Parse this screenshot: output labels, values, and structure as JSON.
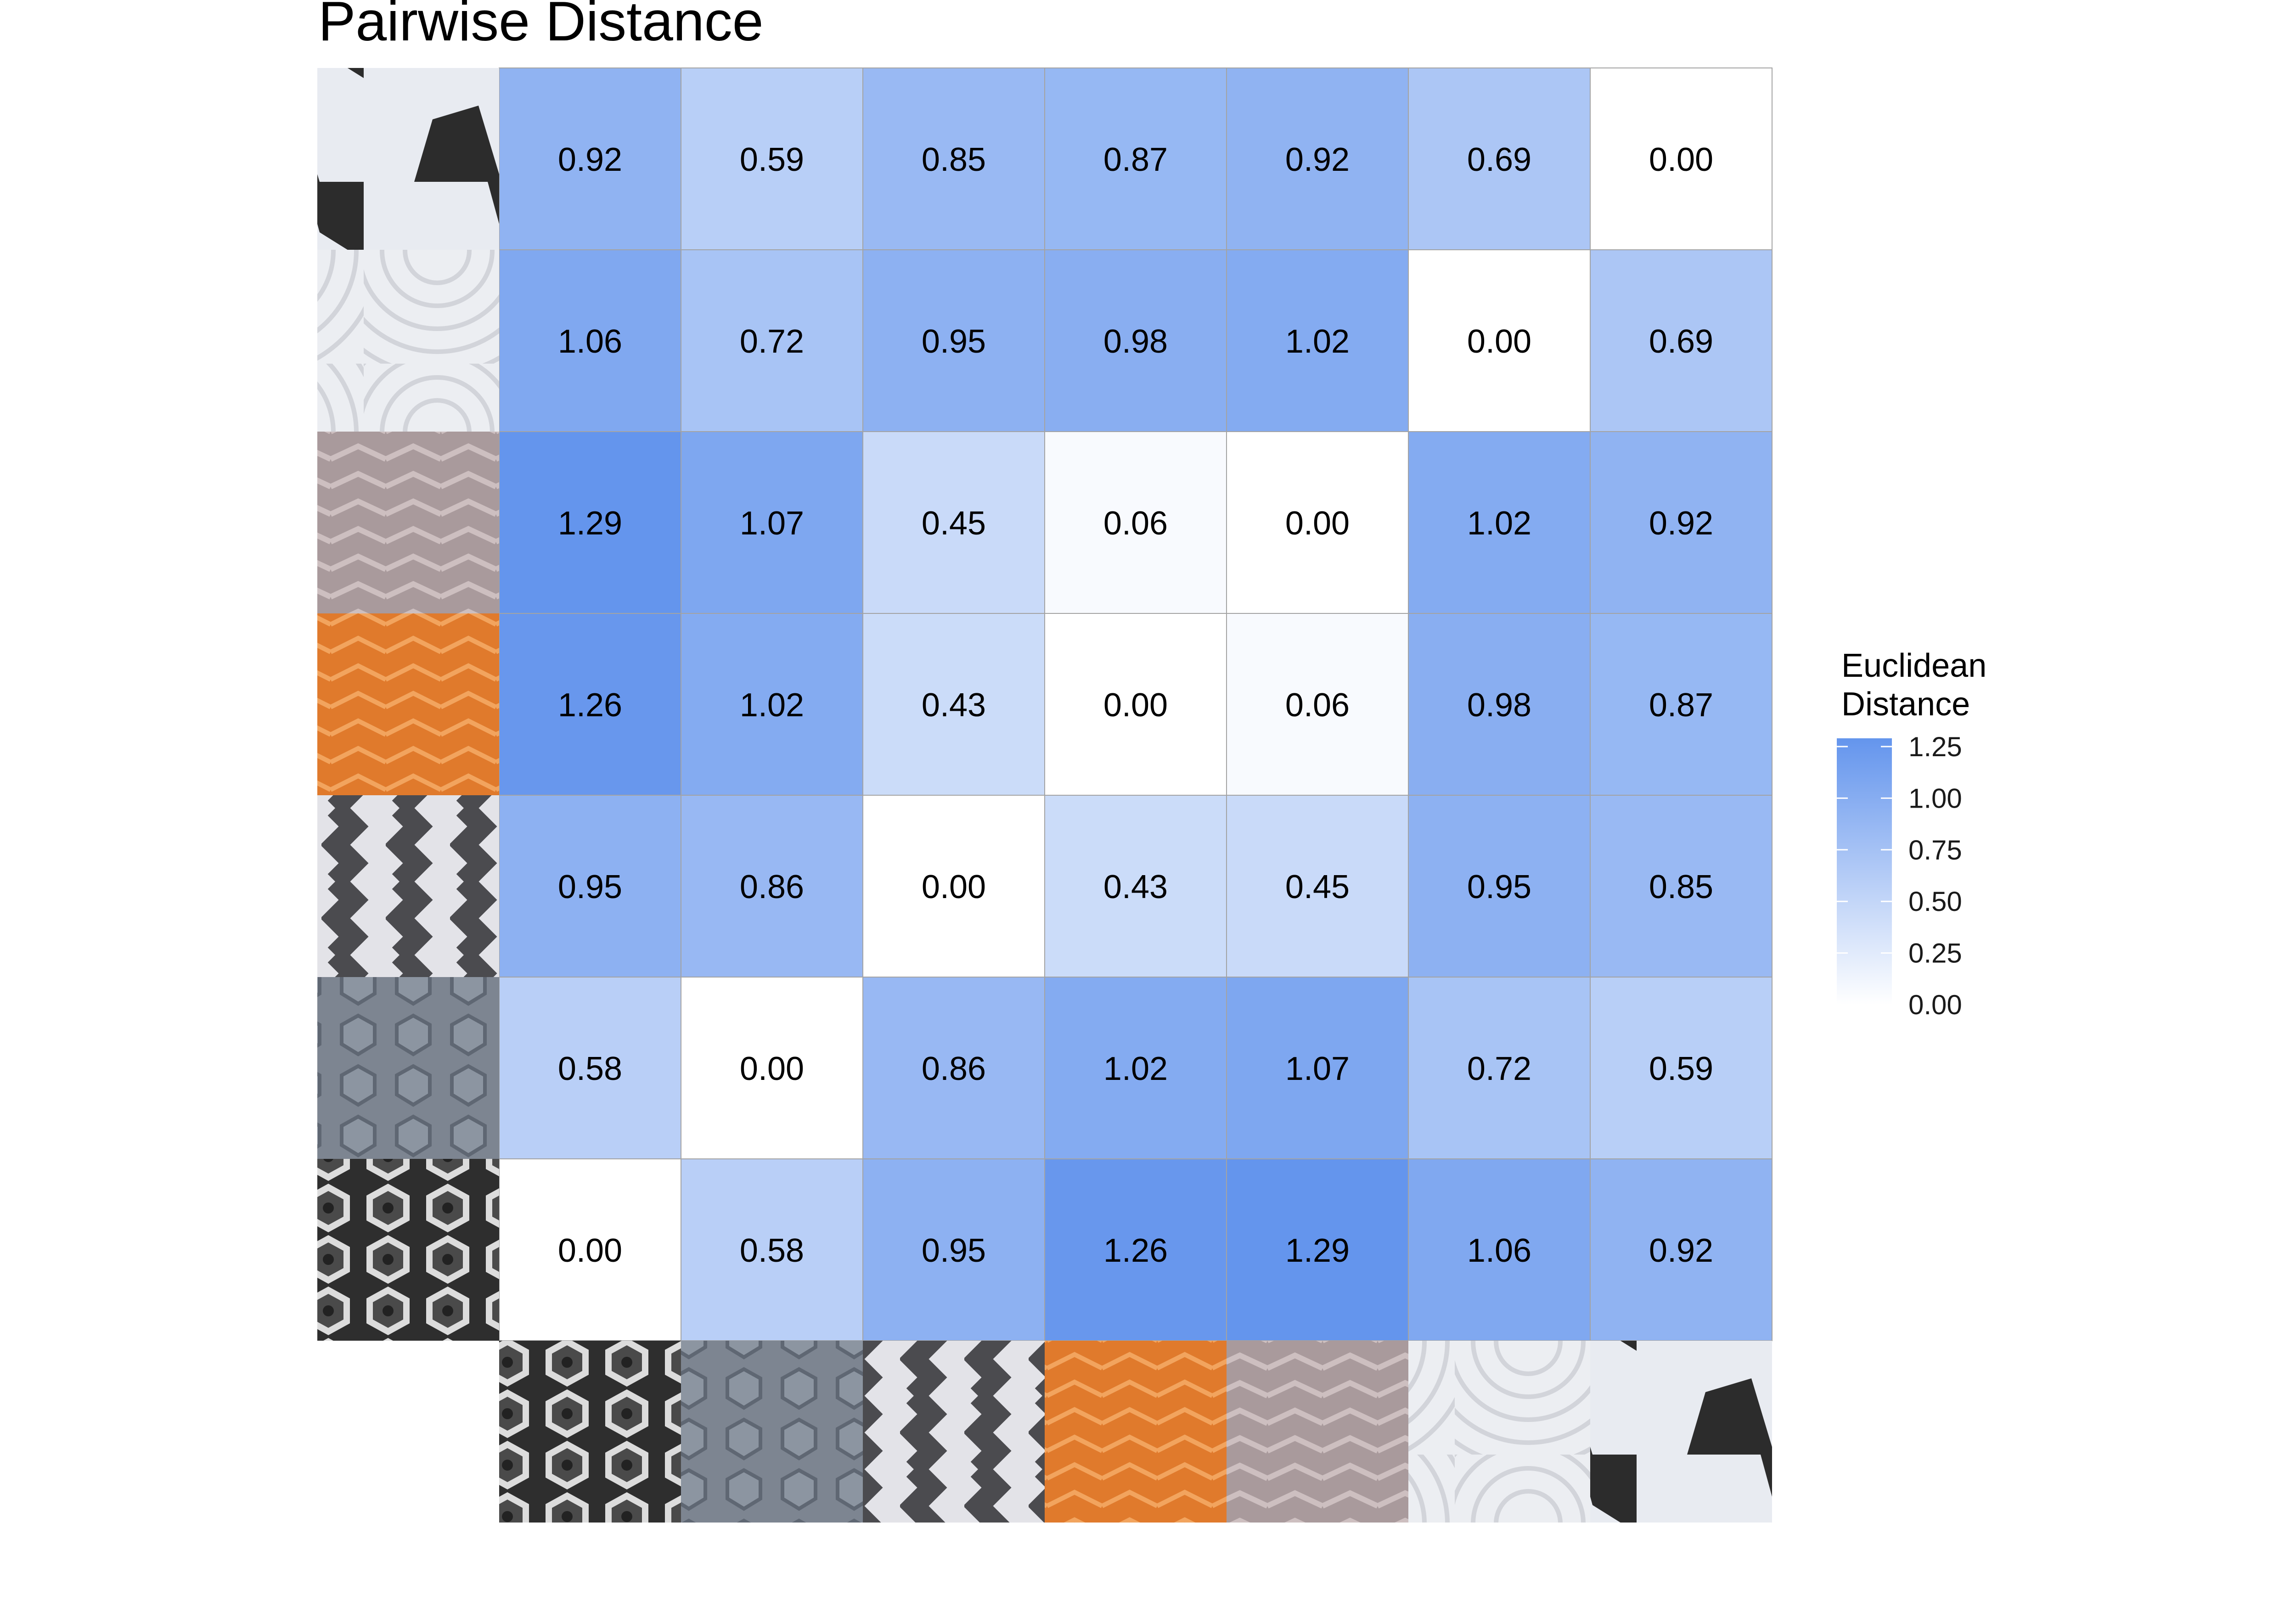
{
  "chart_data": {
    "type": "heatmap",
    "title": "Pairwise Distance",
    "legend_title": [
      "Euclidean",
      "Distance"
    ],
    "legend_ticks": [
      "0.00",
      "0.25",
      "0.50",
      "0.75",
      "1.00",
      "1.25"
    ],
    "legend_range": [
      0,
      1.29
    ],
    "color_low": "#ffffff",
    "color_high": "#6495ed",
    "x_items": [
      "sole-1-dark-hexagon",
      "sole-2-grey-blue",
      "sole-3-grey-zigzag",
      "sole-4-orange-chevron",
      "sole-5-mauve-chevron",
      "sole-6-white-circular",
      "sole-7-white-black"
    ],
    "y_items_bottom_to_top": [
      "sole-1-dark-hexagon",
      "sole-2-grey-blue",
      "sole-3-grey-zigzag",
      "sole-4-orange-chevron",
      "sole-5-mauve-chevron",
      "sole-6-white-circular",
      "sole-7-white-black"
    ],
    "rows_top_to_bottom": [
      [
        "0.92",
        "0.59",
        "0.85",
        "0.87",
        "0.92",
        "0.69",
        "0.00"
      ],
      [
        "1.06",
        "0.72",
        "0.95",
        "0.98",
        "1.02",
        "0.00",
        "0.69"
      ],
      [
        "1.29",
        "1.07",
        "0.45",
        "0.06",
        "0.00",
        "1.02",
        "0.92"
      ],
      [
        "1.26",
        "1.02",
        "0.43",
        "0.00",
        "0.06",
        "0.98",
        "0.87"
      ],
      [
        "0.95",
        "0.86",
        "0.00",
        "0.43",
        "0.45",
        "0.95",
        "0.85"
      ],
      [
        "0.58",
        "0.00",
        "0.86",
        "1.02",
        "1.07",
        "0.72",
        "0.59"
      ],
      [
        "0.00",
        "0.58",
        "0.95",
        "1.26",
        "1.29",
        "1.06",
        "0.92"
      ]
    ]
  }
}
